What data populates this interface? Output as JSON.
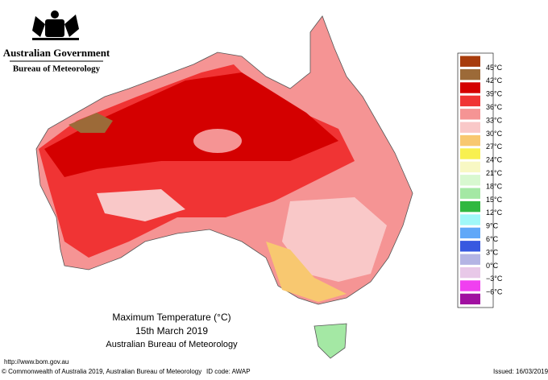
{
  "header": {
    "government": "Australian Government",
    "agency": "Bureau of Meteorology"
  },
  "legend": {
    "colors": [
      "#a83c0c",
      "#9c6a38",
      "#d40000",
      "#f03434",
      "#f59494",
      "#f9c8c8",
      "#f8c870",
      "#f8f050",
      "#f8f8c4",
      "#d8f8d0",
      "#a4e8a4",
      "#30b840",
      "#a0f8f8",
      "#60a8f8",
      "#3858e0",
      "#b4b4e4",
      "#e8c8e8",
      "#f040f0",
      "#a010a0"
    ],
    "labels": [
      "45°C",
      "42°C",
      "39°C",
      "36°C",
      "33°C",
      "30°C",
      "27°C",
      "24°C",
      "21°C",
      "18°C",
      "15°C",
      "12°C",
      "9°C",
      "6°C",
      "3°C",
      "0°C",
      "−3°C",
      "−6°C"
    ]
  },
  "caption": {
    "title": "Maximum Temperature (°C)",
    "date": "15th March 2019",
    "source": "Australian Bureau of Meteorology"
  },
  "footer": {
    "url": "http://www.bom.gov.au",
    "copyright": "© Commonwealth of Australia 2019, Australian Bureau of Meteorology",
    "id_code": "ID code: AWAP",
    "issued": "Issued: 16/03/2019"
  }
}
